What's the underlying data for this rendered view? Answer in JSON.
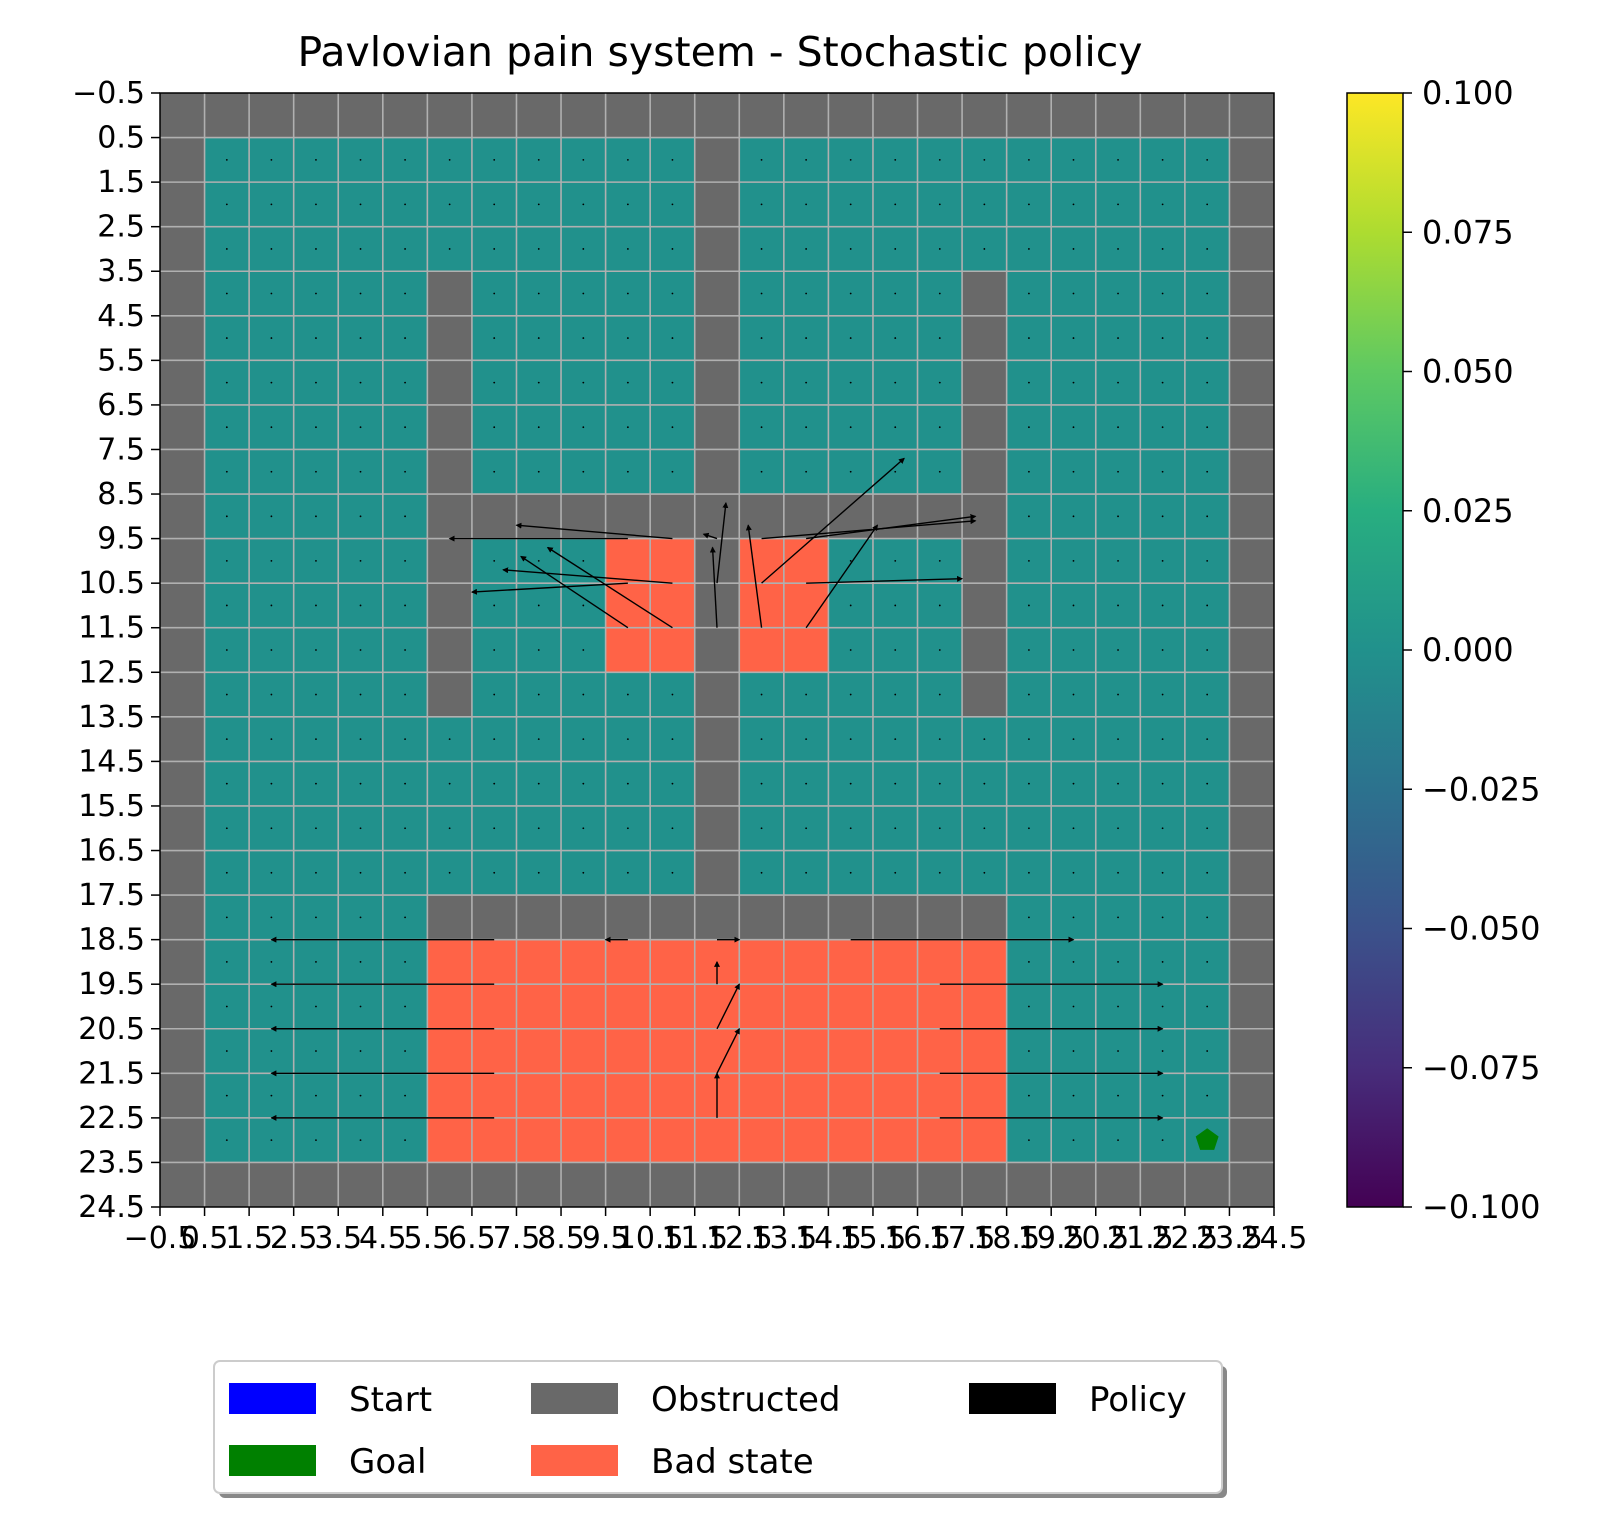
{
  "chart_data": {
    "type": "heatmap",
    "title": "Pavlovian pain system - Stochastic policy",
    "xlabel": "",
    "ylabel": "",
    "grid_size": [
      25,
      25
    ],
    "xlim": [
      -0.5,
      24.5
    ],
    "ylim": [
      24.5,
      -0.5
    ],
    "x_tick_labels": [
      "−0.5",
      "0.5",
      "1.5",
      "2.5",
      "3.5",
      "4.5",
      "5.5",
      "6.5",
      "7.5",
      "8.5",
      "9.5",
      "10.5",
      "11.5",
      "12.5",
      "13.5",
      "14.5",
      "15.5",
      "16.5",
      "17.5",
      "18.5",
      "19.5",
      "20.5",
      "21.5",
      "22.5",
      "23.5",
      "24.5"
    ],
    "y_tick_labels": [
      "−0.5",
      "0.5",
      "1.5",
      "2.5",
      "3.5",
      "4.5",
      "5.5",
      "6.5",
      "7.5",
      "8.5",
      "9.5",
      "10.5",
      "11.5",
      "12.5",
      "13.5",
      "14.5",
      "15.5",
      "16.5",
      "17.5",
      "18.5",
      "19.5",
      "20.5",
      "21.5",
      "22.5",
      "23.5",
      "24.5"
    ],
    "grid": true,
    "cell_value_all_free_cells": 0.0,
    "obstructed_cells_note": "border ring plus interior walls",
    "obstructed_rects": [
      {
        "r0": 0,
        "r1": 24,
        "c0": 0,
        "c1": 0
      },
      {
        "r0": 0,
        "r1": 24,
        "c0": 24,
        "c1": 24
      },
      {
        "r0": 0,
        "r1": 0,
        "c0": 0,
        "c1": 24
      },
      {
        "r0": 24,
        "r1": 24,
        "c0": 0,
        "c1": 24
      },
      {
        "r0": 1,
        "r1": 18,
        "c0": 12,
        "c1": 12
      },
      {
        "r0": 4,
        "r1": 13,
        "c0": 6,
        "c1": 6
      },
      {
        "r0": 4,
        "r1": 13,
        "c0": 18,
        "c1": 18
      },
      {
        "r0": 9,
        "r1": 9,
        "c0": 6,
        "c1": 18
      },
      {
        "r0": 18,
        "r1": 18,
        "c0": 6,
        "c1": 18
      }
    ],
    "bad_state_rects": [
      {
        "r0": 10,
        "r1": 12,
        "c0": 10,
        "c1": 14
      },
      {
        "r0": 19,
        "r1": 23,
        "c0": 6,
        "c1": 18
      }
    ],
    "goal": {
      "row": 23,
      "col": 23
    },
    "start": null,
    "policy_arrows": [
      {
        "x": 10.5,
        "y": 10,
        "u": -4,
        "v": 0
      },
      {
        "x": 11.5,
        "y": 10,
        "u": -3.5,
        "v": -0.3
      },
      {
        "x": 12.5,
        "y": 10,
        "u": -0.3,
        "v": -0.1
      },
      {
        "x": 13.5,
        "y": 10,
        "u": 4.8,
        "v": -0.4
      },
      {
        "x": 14.5,
        "y": 10,
        "u": 3.8,
        "v": -0.5
      },
      {
        "x": 10.5,
        "y": 11,
        "u": -3.5,
        "v": 0.2
      },
      {
        "x": 11.5,
        "y": 11,
        "u": -3.8,
        "v": -0.3
      },
      {
        "x": 12.5,
        "y": 11,
        "u": 0.2,
        "v": -1.8
      },
      {
        "x": 13.5,
        "y": 11,
        "u": 3.2,
        "v": -2.8
      },
      {
        "x": 14.5,
        "y": 11,
        "u": 3.5,
        "v": -0.1
      },
      {
        "x": 10.5,
        "y": 12,
        "u": -2.4,
        "v": -1.6
      },
      {
        "x": 11.5,
        "y": 12,
        "u": -2.8,
        "v": -1.8
      },
      {
        "x": 12.5,
        "y": 12,
        "u": -0.1,
        "v": -1.8
      },
      {
        "x": 13.5,
        "y": 12,
        "u": -0.3,
        "v": -2.3
      },
      {
        "x": 14.5,
        "y": 12,
        "u": 1.6,
        "v": -2.3
      },
      {
        "x": 7.5,
        "y": 19,
        "u": -5,
        "v": 0
      },
      {
        "x": 10.5,
        "y": 19,
        "u": -0.5,
        "v": 0
      },
      {
        "x": 12.5,
        "y": 19,
        "u": 0.5,
        "v": 0
      },
      {
        "x": 15.5,
        "y": 19,
        "u": 5,
        "v": 0
      },
      {
        "x": 7.5,
        "y": 20,
        "u": -5,
        "v": 0
      },
      {
        "x": 12.5,
        "y": 20,
        "u": 0,
        "v": -0.5
      },
      {
        "x": 17.5,
        "y": 20,
        "u": 5,
        "v": 0
      },
      {
        "x": 7.5,
        "y": 21,
        "u": -5,
        "v": 0
      },
      {
        "x": 12.5,
        "y": 21,
        "u": 0.5,
        "v": -1
      },
      {
        "x": 17.5,
        "y": 21,
        "u": 5,
        "v": 0
      },
      {
        "x": 7.5,
        "y": 22,
        "u": -5,
        "v": 0
      },
      {
        "x": 12.5,
        "y": 22,
        "u": 0.5,
        "v": -1
      },
      {
        "x": 17.5,
        "y": 22,
        "u": 5,
        "v": 0
      },
      {
        "x": 7.5,
        "y": 23,
        "u": -5,
        "v": 0
      },
      {
        "x": 12.5,
        "y": 23,
        "u": 0,
        "v": -1
      },
      {
        "x": 17.5,
        "y": 23,
        "u": 5,
        "v": 0
      }
    ],
    "colorbar": {
      "colormap": "viridis",
      "min": -0.1,
      "max": 0.1,
      "tick_labels": [
        "0.100",
        "0.075",
        "0.050",
        "0.025",
        "0.000",
        "−0.025",
        "−0.050",
        "−0.075",
        "−0.100"
      ]
    },
    "legend": {
      "placement": "bottom-center",
      "items": [
        {
          "label": "Start",
          "color": "#0000ff"
        },
        {
          "label": "Goal",
          "color": "#008000"
        },
        {
          "label": "Obstructed",
          "color": "#696969"
        },
        {
          "label": "Bad state",
          "color": "#ff6347"
        },
        {
          "label": "Policy",
          "color": "#000000"
        }
      ]
    },
    "colors": {
      "free_cell": "#21918c",
      "obstructed": "#696969",
      "bad_state": "#ff6347",
      "goal": "#008000",
      "grid_line": "#b0b0b0"
    }
  }
}
